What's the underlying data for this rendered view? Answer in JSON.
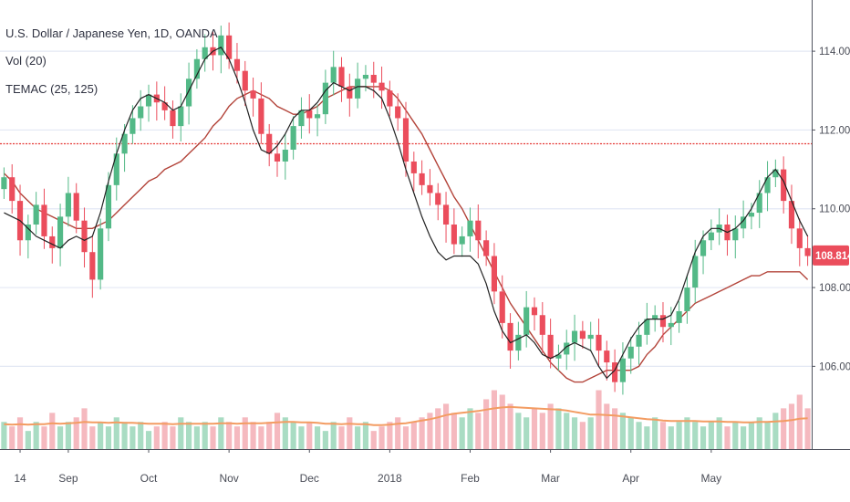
{
  "legend": {
    "line1": "U.S. Dollar / Japanese Yen, 1D, OANDA",
    "line2": "Vol (20)",
    "line3": "TEMAC (25, 125)"
  },
  "colors": {
    "up": "#53b987",
    "down": "#eb4d5c",
    "vol_up": "#a9dcc3",
    "vol_down": "#f5b9bf",
    "fast_ma": "#222222",
    "slow_ma": "#b3443a",
    "vol_ma": "#f39c62",
    "hline": "#e53935",
    "grid": "#e3e8f4",
    "price_box": "#eb4d5c"
  },
  "chart_data": {
    "type": "candlestick",
    "y_range": [
      103.9,
      115.3
    ],
    "y_ticks": [
      "114.000",
      "112.000",
      "110.000",
      "108.000",
      "106.000"
    ],
    "y_tick_values": [
      114,
      112,
      110,
      108,
      106
    ],
    "x_ticks": [
      "14",
      "Sep",
      "Oct",
      "Nov",
      "Dec",
      "2018",
      "Feb",
      "Mar",
      "Apr",
      "May"
    ],
    "x_tick_bar_index": [
      2,
      8,
      18,
      28,
      38,
      48,
      58,
      68,
      78,
      88
    ],
    "last_price": "108.814",
    "last_price_value": 108.814,
    "horizontal_line": 111.65,
    "series_close": [
      110.8,
      110.2,
      109.2,
      109.6,
      110.1,
      109.3,
      109.0,
      109.8,
      110.4,
      109.7,
      108.9,
      108.2,
      109.5,
      110.6,
      111.4,
      111.9,
      112.3,
      112.6,
      112.9,
      112.7,
      112.5,
      112.1,
      112.6,
      113.3,
      113.8,
      114.1,
      113.9,
      114.4,
      113.8,
      113.5,
      113.0,
      112.8,
      111.9,
      111.4,
      111.2,
      111.5,
      112.1,
      112.5,
      112.3,
      112.4,
      113.2,
      113.6,
      113.1,
      112.8,
      113.3,
      113.4,
      113.2,
      113.0,
      112.6,
      112.3,
      111.2,
      110.9,
      110.6,
      110.4,
      110.1,
      109.6,
      109.1,
      109.3,
      109.7,
      109.2,
      108.8,
      107.9,
      107.1,
      106.4,
      106.8,
      107.5,
      107.3,
      106.8,
      106.2,
      106.3,
      106.6,
      106.9,
      106.7,
      106.8,
      106.4,
      106.1,
      105.6,
      106.2,
      106.5,
      106.8,
      107.2,
      107.3,
      107.0,
      107.1,
      107.4,
      108.0,
      108.8,
      109.2,
      109.4,
      109.6,
      109.2,
      109.5,
      109.8,
      109.9,
      110.4,
      110.8,
      111.0,
      110.2,
      109.5,
      109.0,
      108.8
    ],
    "series_fast_ma": [
      109.9,
      109.8,
      109.7,
      109.5,
      109.3,
      109.2,
      109.1,
      109.0,
      109.2,
      109.3,
      109.2,
      109.3,
      109.9,
      110.7,
      111.4,
      112.0,
      112.5,
      112.8,
      112.9,
      112.8,
      112.7,
      112.5,
      112.6,
      113.0,
      113.4,
      113.8,
      114.0,
      114.1,
      113.8,
      113.3,
      112.7,
      112.0,
      111.5,
      111.4,
      111.6,
      111.9,
      112.3,
      112.5,
      112.5,
      112.7,
      113.0,
      113.2,
      113.1,
      113.0,
      113.1,
      113.1,
      113.0,
      112.8,
      112.3,
      111.7,
      111.0,
      110.4,
      109.8,
      109.3,
      108.9,
      108.7,
      108.8,
      108.8,
      108.8,
      108.6,
      108.1,
      107.4,
      106.9,
      106.6,
      106.7,
      106.8,
      106.6,
      106.3,
      106.2,
      106.3,
      106.5,
      106.6,
      106.5,
      106.4,
      106.0,
      105.7,
      105.9,
      106.3,
      106.7,
      107.0,
      107.2,
      107.2,
      107.2,
      107.3,
      107.7,
      108.3,
      108.9,
      109.3,
      109.5,
      109.5,
      109.4,
      109.5,
      109.7,
      110.0,
      110.4,
      110.8,
      111.0,
      110.7,
      110.2,
      109.7,
      109.3
    ],
    "series_slow_ma": [
      110.9,
      110.7,
      110.4,
      110.2,
      110.0,
      109.9,
      109.8,
      109.7,
      109.6,
      109.5,
      109.5,
      109.5,
      109.6,
      109.7,
      109.9,
      110.1,
      110.3,
      110.5,
      110.7,
      110.8,
      111.0,
      111.1,
      111.2,
      111.4,
      111.6,
      111.8,
      112.1,
      112.3,
      112.6,
      112.8,
      112.9,
      113.0,
      112.9,
      112.8,
      112.6,
      112.5,
      112.4,
      112.4,
      112.5,
      112.6,
      112.8,
      112.9,
      113.0,
      113.1,
      113.1,
      113.1,
      113.1,
      113.1,
      113.0,
      112.8,
      112.5,
      112.2,
      111.9,
      111.5,
      111.1,
      110.7,
      110.3,
      110.0,
      109.6,
      109.2,
      108.8,
      108.4,
      108.0,
      107.6,
      107.3,
      107.0,
      106.7,
      106.4,
      106.1,
      105.9,
      105.7,
      105.6,
      105.6,
      105.7,
      105.8,
      105.9,
      105.9,
      105.9,
      105.9,
      106.0,
      106.3,
      106.5,
      106.8,
      107.0,
      107.2,
      107.4,
      107.6,
      107.7,
      107.8,
      107.9,
      108.0,
      108.1,
      108.2,
      108.3,
      108.3,
      108.4,
      108.4,
      108.4,
      108.4,
      108.4,
      108.2
    ],
    "volume_rel": [
      0.6,
      0.5,
      0.7,
      0.4,
      0.6,
      0.5,
      0.8,
      0.5,
      0.6,
      0.7,
      0.9,
      0.5,
      0.6,
      0.5,
      0.7,
      0.6,
      0.5,
      0.6,
      0.4,
      0.5,
      0.6,
      0.5,
      0.7,
      0.6,
      0.5,
      0.6,
      0.5,
      0.7,
      0.6,
      0.5,
      0.7,
      0.6,
      0.5,
      0.6,
      0.8,
      0.7,
      0.6,
      0.5,
      0.6,
      0.5,
      0.4,
      0.6,
      0.5,
      0.7,
      0.5,
      0.6,
      0.4,
      0.5,
      0.6,
      0.7,
      0.5,
      0.6,
      0.7,
      0.8,
      0.9,
      1.0,
      0.8,
      0.7,
      0.9,
      0.8,
      1.1,
      1.3,
      1.2,
      1.0,
      0.8,
      0.7,
      0.9,
      0.8,
      1.0,
      0.9,
      0.8,
      0.7,
      0.6,
      0.7,
      1.3,
      1.0,
      0.9,
      0.8,
      0.7,
      0.6,
      0.5,
      0.7,
      0.6,
      0.5,
      0.6,
      0.7,
      0.6,
      0.5,
      0.6,
      0.7,
      0.5,
      0.6,
      0.5,
      0.6,
      0.7,
      0.6,
      0.8,
      0.9,
      1.0,
      1.2,
      0.9
    ],
    "volume_ma_rel": [
      0.55,
      0.54,
      0.55,
      0.54,
      0.55,
      0.55,
      0.57,
      0.56,
      0.57,
      0.58,
      0.6,
      0.59,
      0.59,
      0.58,
      0.59,
      0.58,
      0.58,
      0.57,
      0.56,
      0.56,
      0.56,
      0.55,
      0.56,
      0.56,
      0.56,
      0.56,
      0.56,
      0.57,
      0.57,
      0.56,
      0.57,
      0.57,
      0.57,
      0.58,
      0.59,
      0.6,
      0.6,
      0.59,
      0.59,
      0.58,
      0.56,
      0.56,
      0.55,
      0.56,
      0.55,
      0.55,
      0.53,
      0.53,
      0.54,
      0.56,
      0.57,
      0.6,
      0.63,
      0.66,
      0.7,
      0.75,
      0.78,
      0.8,
      0.82,
      0.84,
      0.87,
      0.9,
      0.92,
      0.93,
      0.92,
      0.91,
      0.9,
      0.89,
      0.88,
      0.87,
      0.85,
      0.82,
      0.79,
      0.76,
      0.76,
      0.75,
      0.74,
      0.72,
      0.7,
      0.68,
      0.66,
      0.65,
      0.63,
      0.62,
      0.62,
      0.62,
      0.62,
      0.61,
      0.61,
      0.61,
      0.6,
      0.6,
      0.59,
      0.59,
      0.6,
      0.6,
      0.61,
      0.62,
      0.64,
      0.67,
      0.68
    ]
  }
}
